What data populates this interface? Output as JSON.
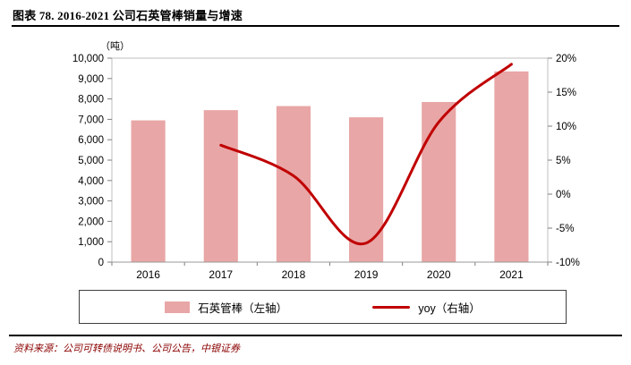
{
  "header": {
    "title": "图表 78. 2016-2021 公司石英管棒销量与增速"
  },
  "chart_data": {
    "type": "combo",
    "title": "2016-2021 公司石英管棒销量与增速",
    "unit_label": "（吨）",
    "grid": false,
    "categories": [
      "2016",
      "2017",
      "2018",
      "2019",
      "2020",
      "2021"
    ],
    "series": [
      {
        "name": "石英管棒（左轴）",
        "type": "bar",
        "axis": "left",
        "color": "#e9a6a6",
        "values": [
          6950,
          7450,
          7650,
          7100,
          7850,
          9350
        ]
      },
      {
        "name": "yoy（右轴）",
        "type": "line",
        "axis": "right",
        "color": "#c00000",
        "values": [
          null,
          7.2,
          2.7,
          -7.2,
          10.6,
          19.1
        ]
      }
    ],
    "left_axis": {
      "min": 0,
      "max": 10000,
      "step": 1000,
      "tick_labels": [
        "0",
        "1,000",
        "2,000",
        "3,000",
        "4,000",
        "5,000",
        "6,000",
        "7,000",
        "8,000",
        "9,000",
        "10,000"
      ]
    },
    "right_axis": {
      "min": -10,
      "max": 20,
      "step": 5,
      "tick_labels": [
        "-10%",
        "-5%",
        "0%",
        "5%",
        "10%",
        "15%",
        "20%"
      ]
    },
    "legend": {
      "position": "bottom",
      "items": [
        {
          "label": "石英管棒（左轴）",
          "swatch": "bar"
        },
        {
          "label": "yoy（右轴）",
          "swatch": "line"
        }
      ]
    }
  },
  "footer": {
    "source": "资料来源：公司可转债说明书、公司公告，中银证券"
  }
}
